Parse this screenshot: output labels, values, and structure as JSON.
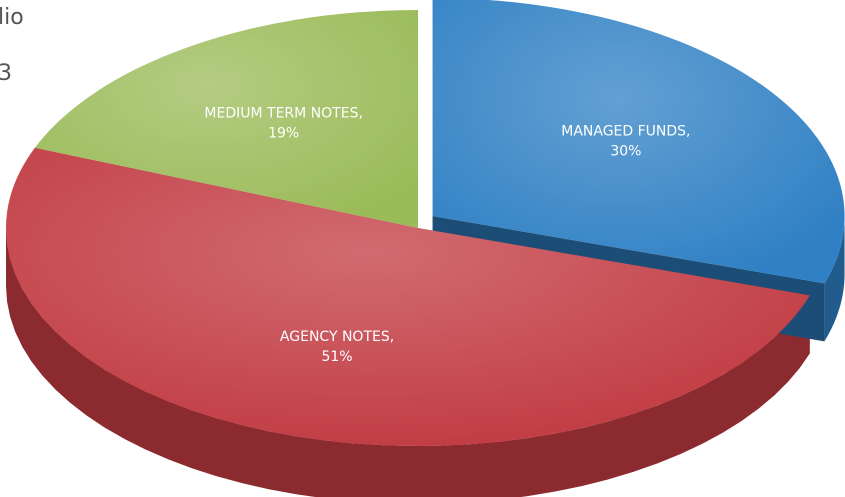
{
  "page_fragments": [
    "lio",
    "3"
  ],
  "chart_data": {
    "type": "pie",
    "categories": [
      "MANAGED FUNDS,",
      "AGENCY NOTES,",
      "MEDIUM TERM NOTES,"
    ],
    "values": [
      30,
      51,
      19
    ],
    "value_labels": [
      "30%",
      "51%",
      "19%"
    ],
    "colors": [
      "#2f80c4",
      "#c13a41",
      "#9bbb59"
    ],
    "start_angle": 0,
    "direction": "clockwise",
    "exploded": [
      0
    ]
  }
}
